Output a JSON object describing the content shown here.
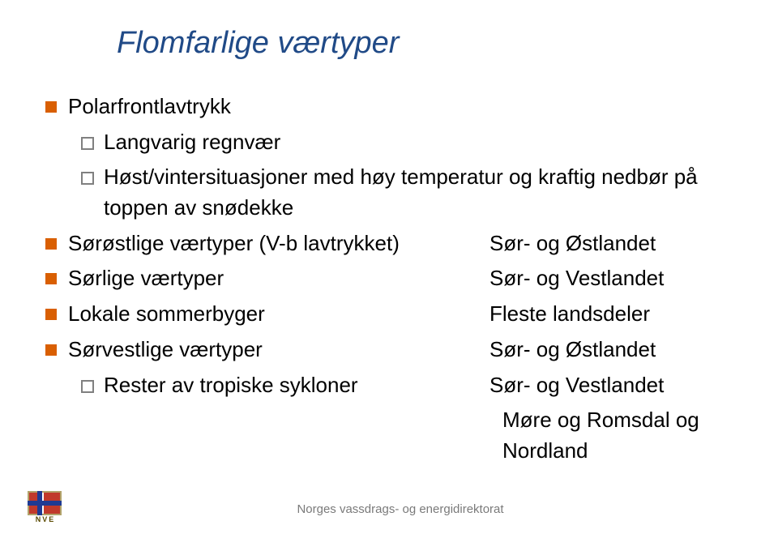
{
  "title": "Flomfarlige værtyper",
  "colors": {
    "title": "#204a87",
    "bullet1": "#d95f02",
    "bullet2_border": "#808080",
    "body_text": "#000000",
    "footer_text": "#7a7a7a"
  },
  "font": {
    "title_size_pt": 29,
    "body_size_pt": 20,
    "title_italic": true
  },
  "items": [
    {
      "level": 1,
      "label": "Polarfrontlavtrykk",
      "right": ""
    },
    {
      "level": 2,
      "label": "Langvarig regnvær",
      "right": ""
    },
    {
      "level": 2,
      "label": "Høst/vintersituasjoner med høy temperatur og kraftig nedbør på toppen av snødekke",
      "right": ""
    },
    {
      "level": 1,
      "label": "Sørøstlige værtyper (V-b lavtrykket)",
      "right": "Sør- og Østlandet"
    },
    {
      "level": 1,
      "label": "Sørlige værtyper",
      "right": "Sør- og Vestlandet"
    },
    {
      "level": 1,
      "label": "Lokale sommerbyger",
      "right": "Fleste landsdeler"
    },
    {
      "level": 1,
      "label": "Sørvestlige værtyper",
      "right": "Sør- og Østlandet"
    },
    {
      "level": 2,
      "label": "Rester av tropiske sykloner",
      "right": "Sør- og Vestlandet"
    }
  ],
  "trailing_right": [
    "Møre og Romsdal og",
    "Nordland"
  ],
  "footer": "Norges vassdrags- og energidirektorat",
  "logo_caption": "NVE"
}
